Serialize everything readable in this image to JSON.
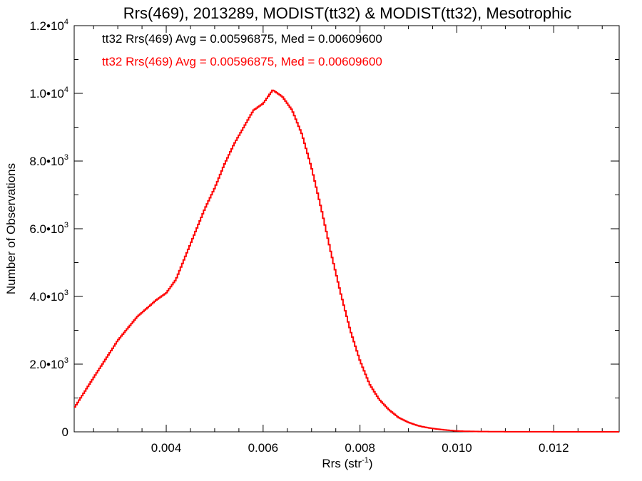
{
  "chart_data": {
    "type": "line",
    "step": true,
    "title": "Rrs(469), 2013289, MODIST(tt32) & MODIST(tt32), Mesotrophic",
    "xlabel_main": "Rrs (str",
    "xlabel_sup": "-1",
    "xlabel_end": ")",
    "ylabel": "Number of Observations",
    "xlim": [
      0.0021,
      0.01335
    ],
    "ylim": [
      0,
      12000
    ],
    "x_ticks": [
      {
        "value": 0.004,
        "label": "0.004"
      },
      {
        "value": 0.006,
        "label": "0.006"
      },
      {
        "value": 0.008,
        "label": "0.008"
      },
      {
        "value": 0.01,
        "label": "0.010"
      },
      {
        "value": 0.012,
        "label": "0.012"
      }
    ],
    "y_ticks": [
      {
        "value": 0,
        "mant": "0",
        "exp": ""
      },
      {
        "value": 2000,
        "mant": "2.0•10",
        "exp": "3"
      },
      {
        "value": 4000,
        "mant": "4.0•10",
        "exp": "3"
      },
      {
        "value": 6000,
        "mant": "6.0•10",
        "exp": "3"
      },
      {
        "value": 8000,
        "mant": "8.0•10",
        "exp": "3"
      },
      {
        "value": 10000,
        "mant": "1.0•10",
        "exp": "4"
      },
      {
        "value": 12000,
        "mant": "1.2•10",
        "exp": "4"
      }
    ],
    "annotations": [
      {
        "text": "tt32 Rrs(469) Avg = 0.00596875, Med = 0.00609600",
        "color": "#000000"
      },
      {
        "text": "tt32 Rrs(469) Avg = 0.00596875, Med = 0.00609600",
        "color": "#ff0000"
      }
    ],
    "series": [
      {
        "color": "#ff0000",
        "x": [
          0.0021,
          0.0025,
          0.003,
          0.0034,
          0.0038,
          0.004,
          0.0042,
          0.0044,
          0.0046,
          0.0048,
          0.005,
          0.0052,
          0.0054,
          0.0056,
          0.0058,
          0.006,
          0.0061,
          0.0062,
          0.0063,
          0.0064,
          0.0065,
          0.0066,
          0.0068,
          0.007,
          0.0072,
          0.0074,
          0.0076,
          0.0078,
          0.008,
          0.0082,
          0.0084,
          0.0086,
          0.0088,
          0.009,
          0.0092,
          0.0094,
          0.0096,
          0.0098,
          0.01,
          0.0102,
          0.0104,
          0.0106,
          0.0108,
          0.011,
          0.0115,
          0.012,
          0.01335
        ],
        "y": [
          700,
          1600,
          2700,
          3400,
          3900,
          4100,
          4500,
          5200,
          5900,
          6600,
          7200,
          7900,
          8500,
          9000,
          9500,
          9700,
          9900,
          10100,
          10000,
          9900,
          9700,
          9500,
          8800,
          7800,
          6600,
          5300,
          4100,
          3000,
          2100,
          1400,
          950,
          650,
          420,
          280,
          180,
          120,
          80,
          50,
          25,
          15,
          10,
          8,
          5,
          3,
          2,
          1,
          0
        ]
      }
    ]
  }
}
